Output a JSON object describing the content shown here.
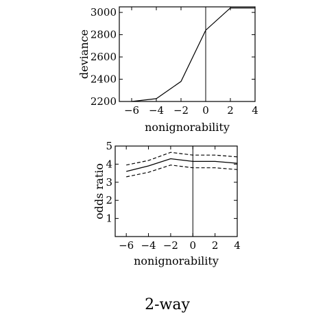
{
  "caption": "2-way",
  "chart_data": [
    {
      "type": "line",
      "xlabel": "nonignorability",
      "ylabel": "deviance",
      "xlim": [
        -7,
        4
      ],
      "ylim": [
        2200,
        3050
      ],
      "xticks": [
        -6,
        -4,
        -2,
        0,
        2,
        4
      ],
      "yticks": [
        2200,
        2400,
        2600,
        2800,
        3000
      ],
      "reference_line_x": 0,
      "series": [
        {
          "x": [
            -6,
            -4,
            -2,
            0,
            2,
            4
          ],
          "y": [
            2200,
            2225,
            2380,
            2840,
            3040,
            3040
          ],
          "style": "solid"
        }
      ]
    },
    {
      "type": "line",
      "xlabel": "nonignorability",
      "ylabel": "odds ratio",
      "xlim": [
        -7,
        4
      ],
      "ylim": [
        0,
        5
      ],
      "xticks": [
        -6,
        -4,
        -2,
        0,
        2,
        4
      ],
      "yticks": [
        0,
        1,
        2,
        3,
        4,
        5
      ],
      "yticklabels": [
        "",
        "1",
        "2",
        "3",
        "4",
        "5"
      ],
      "reference_line_x": 0,
      "series": [
        {
          "x": [
            -6,
            -4,
            -2,
            0,
            2,
            4
          ],
          "y": [
            3.95,
            4.2,
            4.65,
            4.5,
            4.5,
            4.4
          ],
          "style": "dashed"
        },
        {
          "x": [
            -6,
            -4,
            -2,
            0,
            2,
            4
          ],
          "y": [
            3.6,
            3.9,
            4.3,
            4.15,
            4.15,
            4.05
          ],
          "style": "solid"
        },
        {
          "x": [
            -6,
            -4,
            -2,
            0,
            2,
            4
          ],
          "y": [
            3.3,
            3.55,
            3.95,
            3.8,
            3.8,
            3.7
          ],
          "style": "dashed"
        }
      ]
    }
  ]
}
